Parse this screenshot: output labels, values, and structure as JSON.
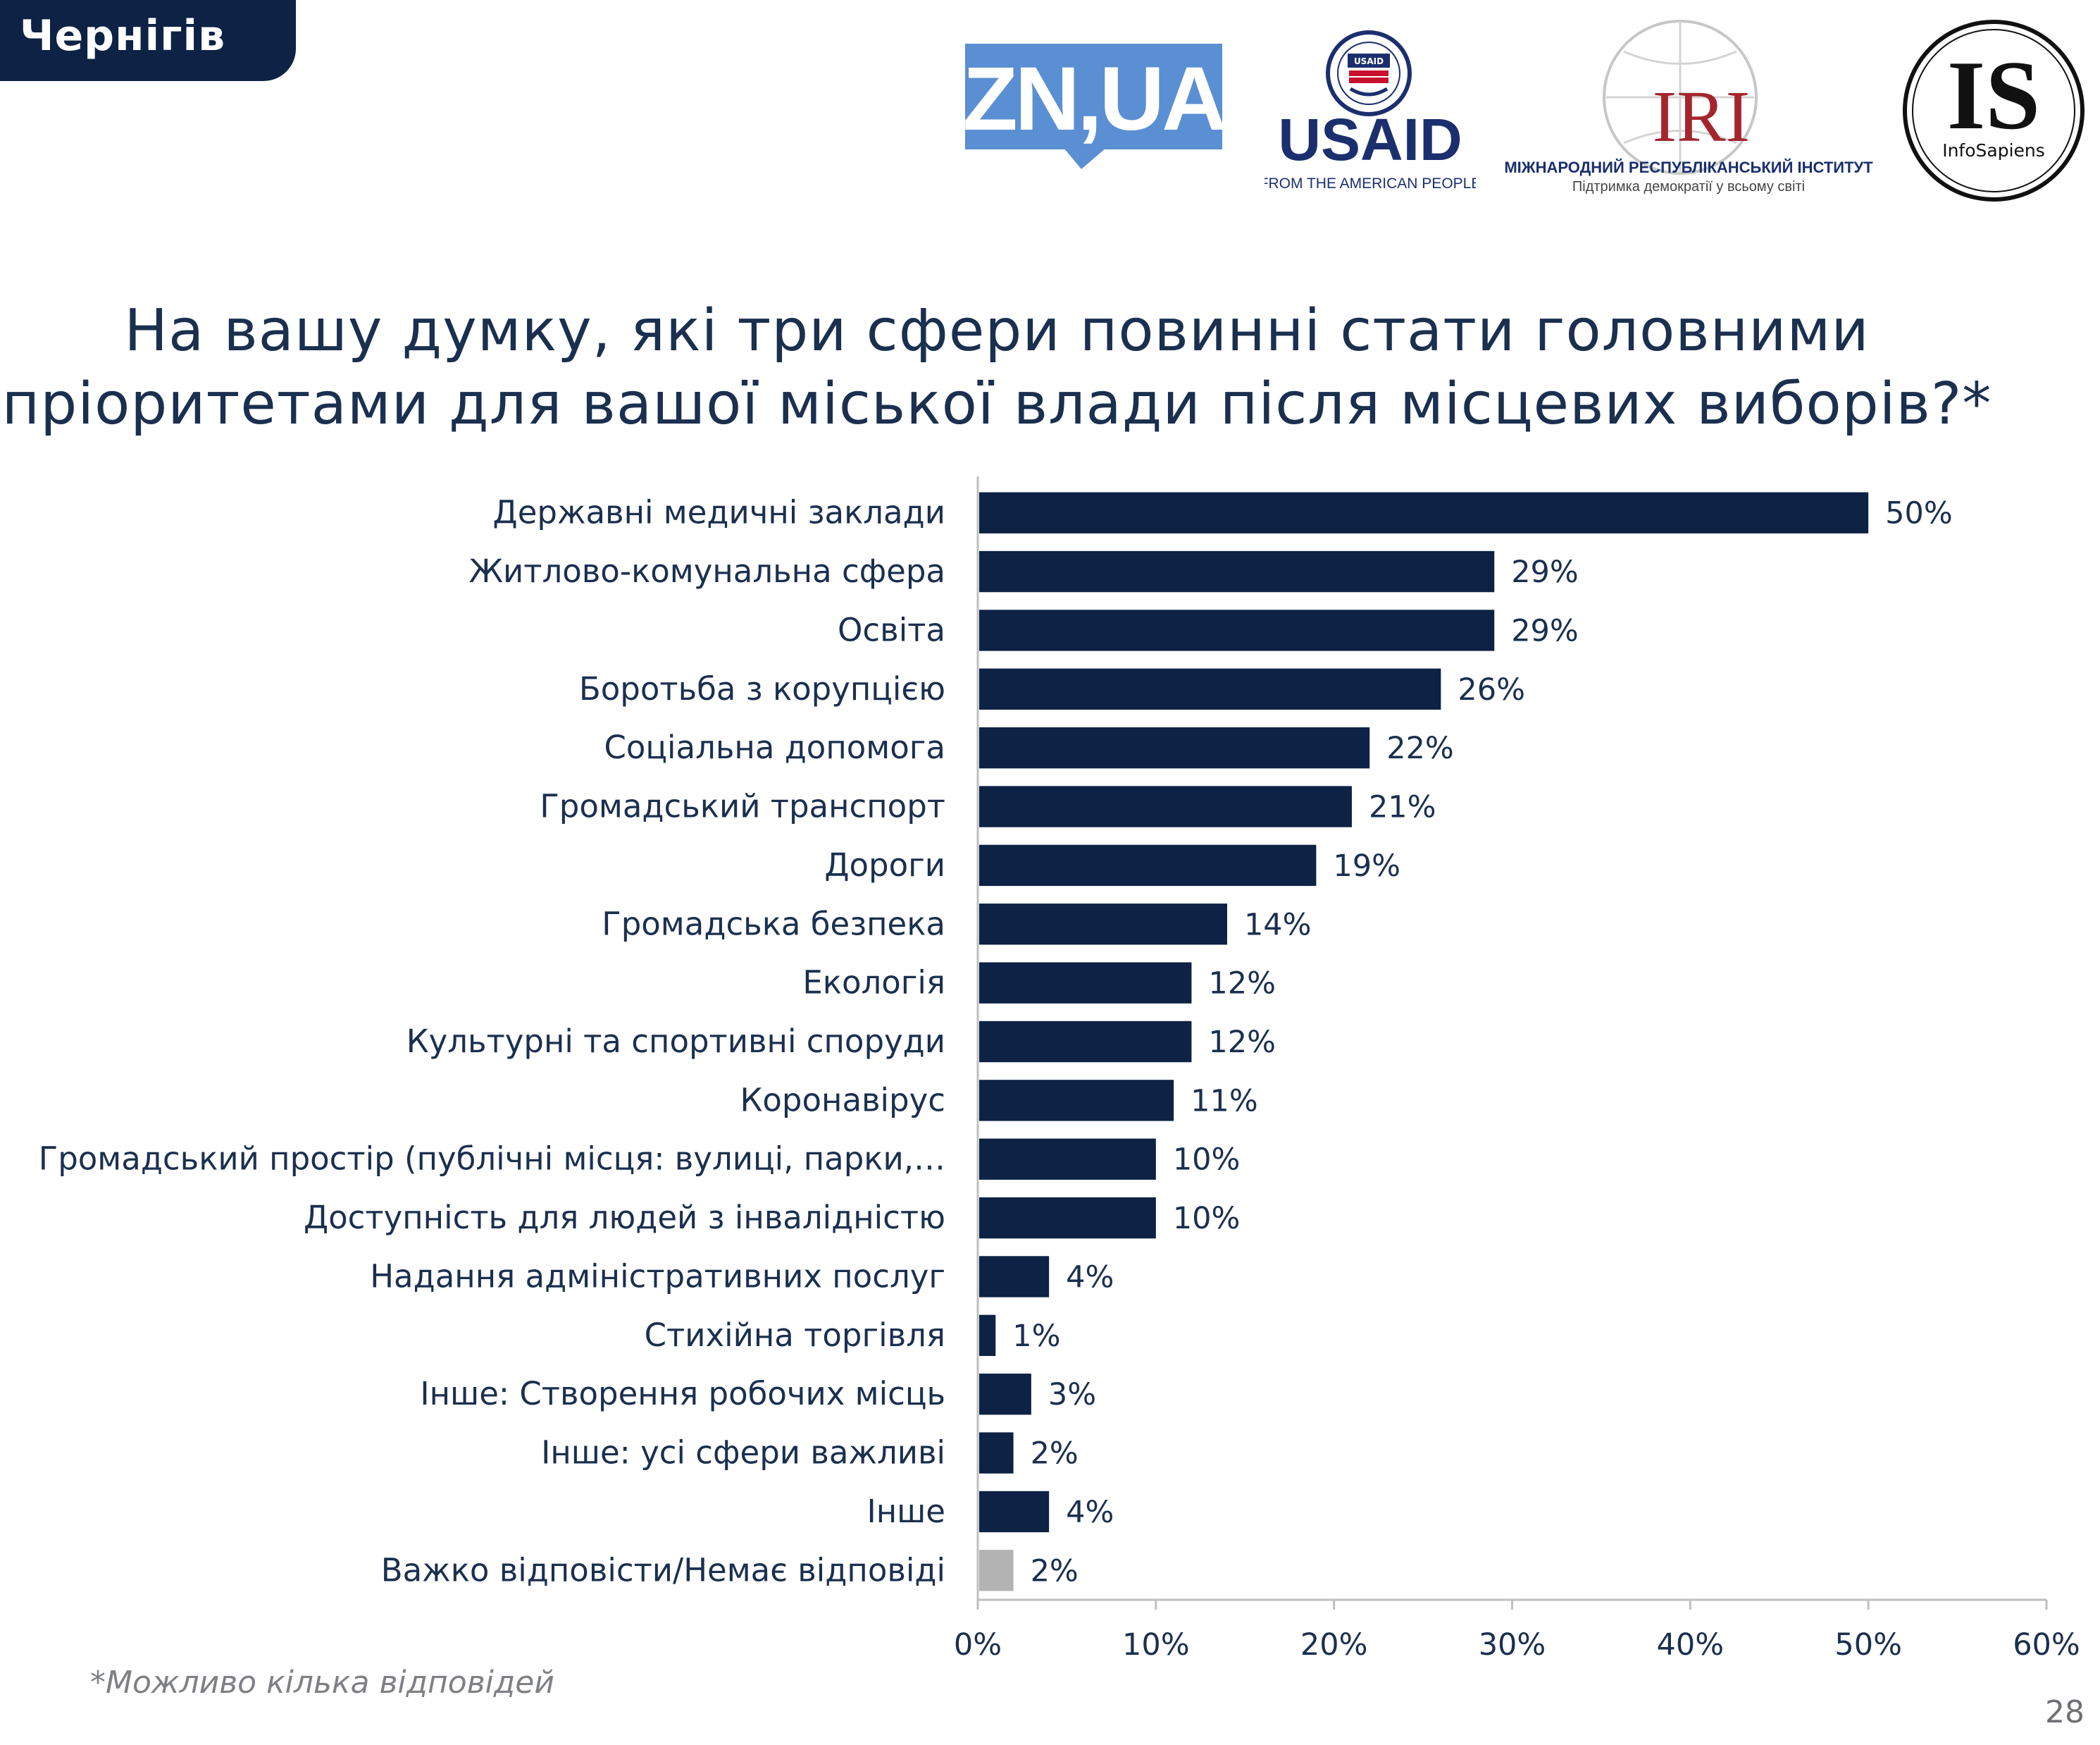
{
  "header": {
    "city": "Чернігів"
  },
  "logos": {
    "zn": {
      "text": "ZN,UA",
      "color": "#5b8fd3"
    },
    "usaid": {
      "text": "USAID",
      "tagline": "FROM THE AMERICAN PEOPLE",
      "seal_text": "USAID",
      "color": "#1b2f6e",
      "accent": "#c8102e"
    },
    "iri": {
      "text": "IRI",
      "name": "МІЖНАРОДНИЙ РЕСПУБЛІКАНСЬКИЙ ІНСТИТУТ",
      "tagline": "Підтримка демократії у всьому світі",
      "color": "#a4262c"
    },
    "infosapiens": {
      "text": "IS",
      "name": "InfoSapiens"
    }
  },
  "chart_data": {
    "type": "bar",
    "orientation": "horizontal",
    "title": "На вашу думку, які три сфери повинні стати головними пріоритетами для вашої міської влади після місцевих виборів?*",
    "title_lines": [
      "На вашу думку, які три сфери повинні стати головними",
      "пріоритетами для вашої міської влади після місцевих виборів?*"
    ],
    "categories": [
      "Державні медичні заклади",
      "Житлово-комунальна сфера",
      "Освіта",
      "Боротьба з корупцією",
      "Соціальна допомога",
      "Громадський транспорт",
      "Дороги",
      "Громадська безпека",
      "Екологія",
      "Культурні та спортивні споруди",
      "Коронавірус",
      "Громадський простір (публічні місця: вулиці, парки,…",
      "Доступність для людей з інвалідністю",
      "Надання адміністративних послуг",
      "Стихійна торгівля",
      "Інше: Створення робочих місць",
      "Інше: усі сфери важливі",
      "Інше",
      "Важко відповісти/Немає відповіді"
    ],
    "values": [
      50,
      29,
      29,
      26,
      22,
      21,
      19,
      14,
      12,
      12,
      11,
      10,
      10,
      4,
      1,
      3,
      2,
      4,
      2
    ],
    "value_labels": [
      "50%",
      "29%",
      "29%",
      "26%",
      "22%",
      "21%",
      "19%",
      "14%",
      "12%",
      "12%",
      "11%",
      "10%",
      "10%",
      "4%",
      "1%",
      "3%",
      "2%",
      "4%",
      "2%"
    ],
    "bar_colors": [
      "#0d2244",
      "#0d2244",
      "#0d2244",
      "#0d2244",
      "#0d2244",
      "#0d2244",
      "#0d2244",
      "#0d2244",
      "#0d2244",
      "#0d2244",
      "#0d2244",
      "#0d2244",
      "#0d2244",
      "#0d2244",
      "#0d2244",
      "#0d2244",
      "#0d2244",
      "#0d2244",
      "#b3b3b3"
    ],
    "xlim": [
      0,
      60
    ],
    "xticks": [
      0,
      10,
      20,
      30,
      40,
      50,
      60
    ],
    "xtick_labels": [
      "0%",
      "10%",
      "20%",
      "30%",
      "40%",
      "50%",
      "60%"
    ],
    "grid": false,
    "legend": "none"
  },
  "footnote": "*Можливо кілька відповідей",
  "page_number": "28"
}
